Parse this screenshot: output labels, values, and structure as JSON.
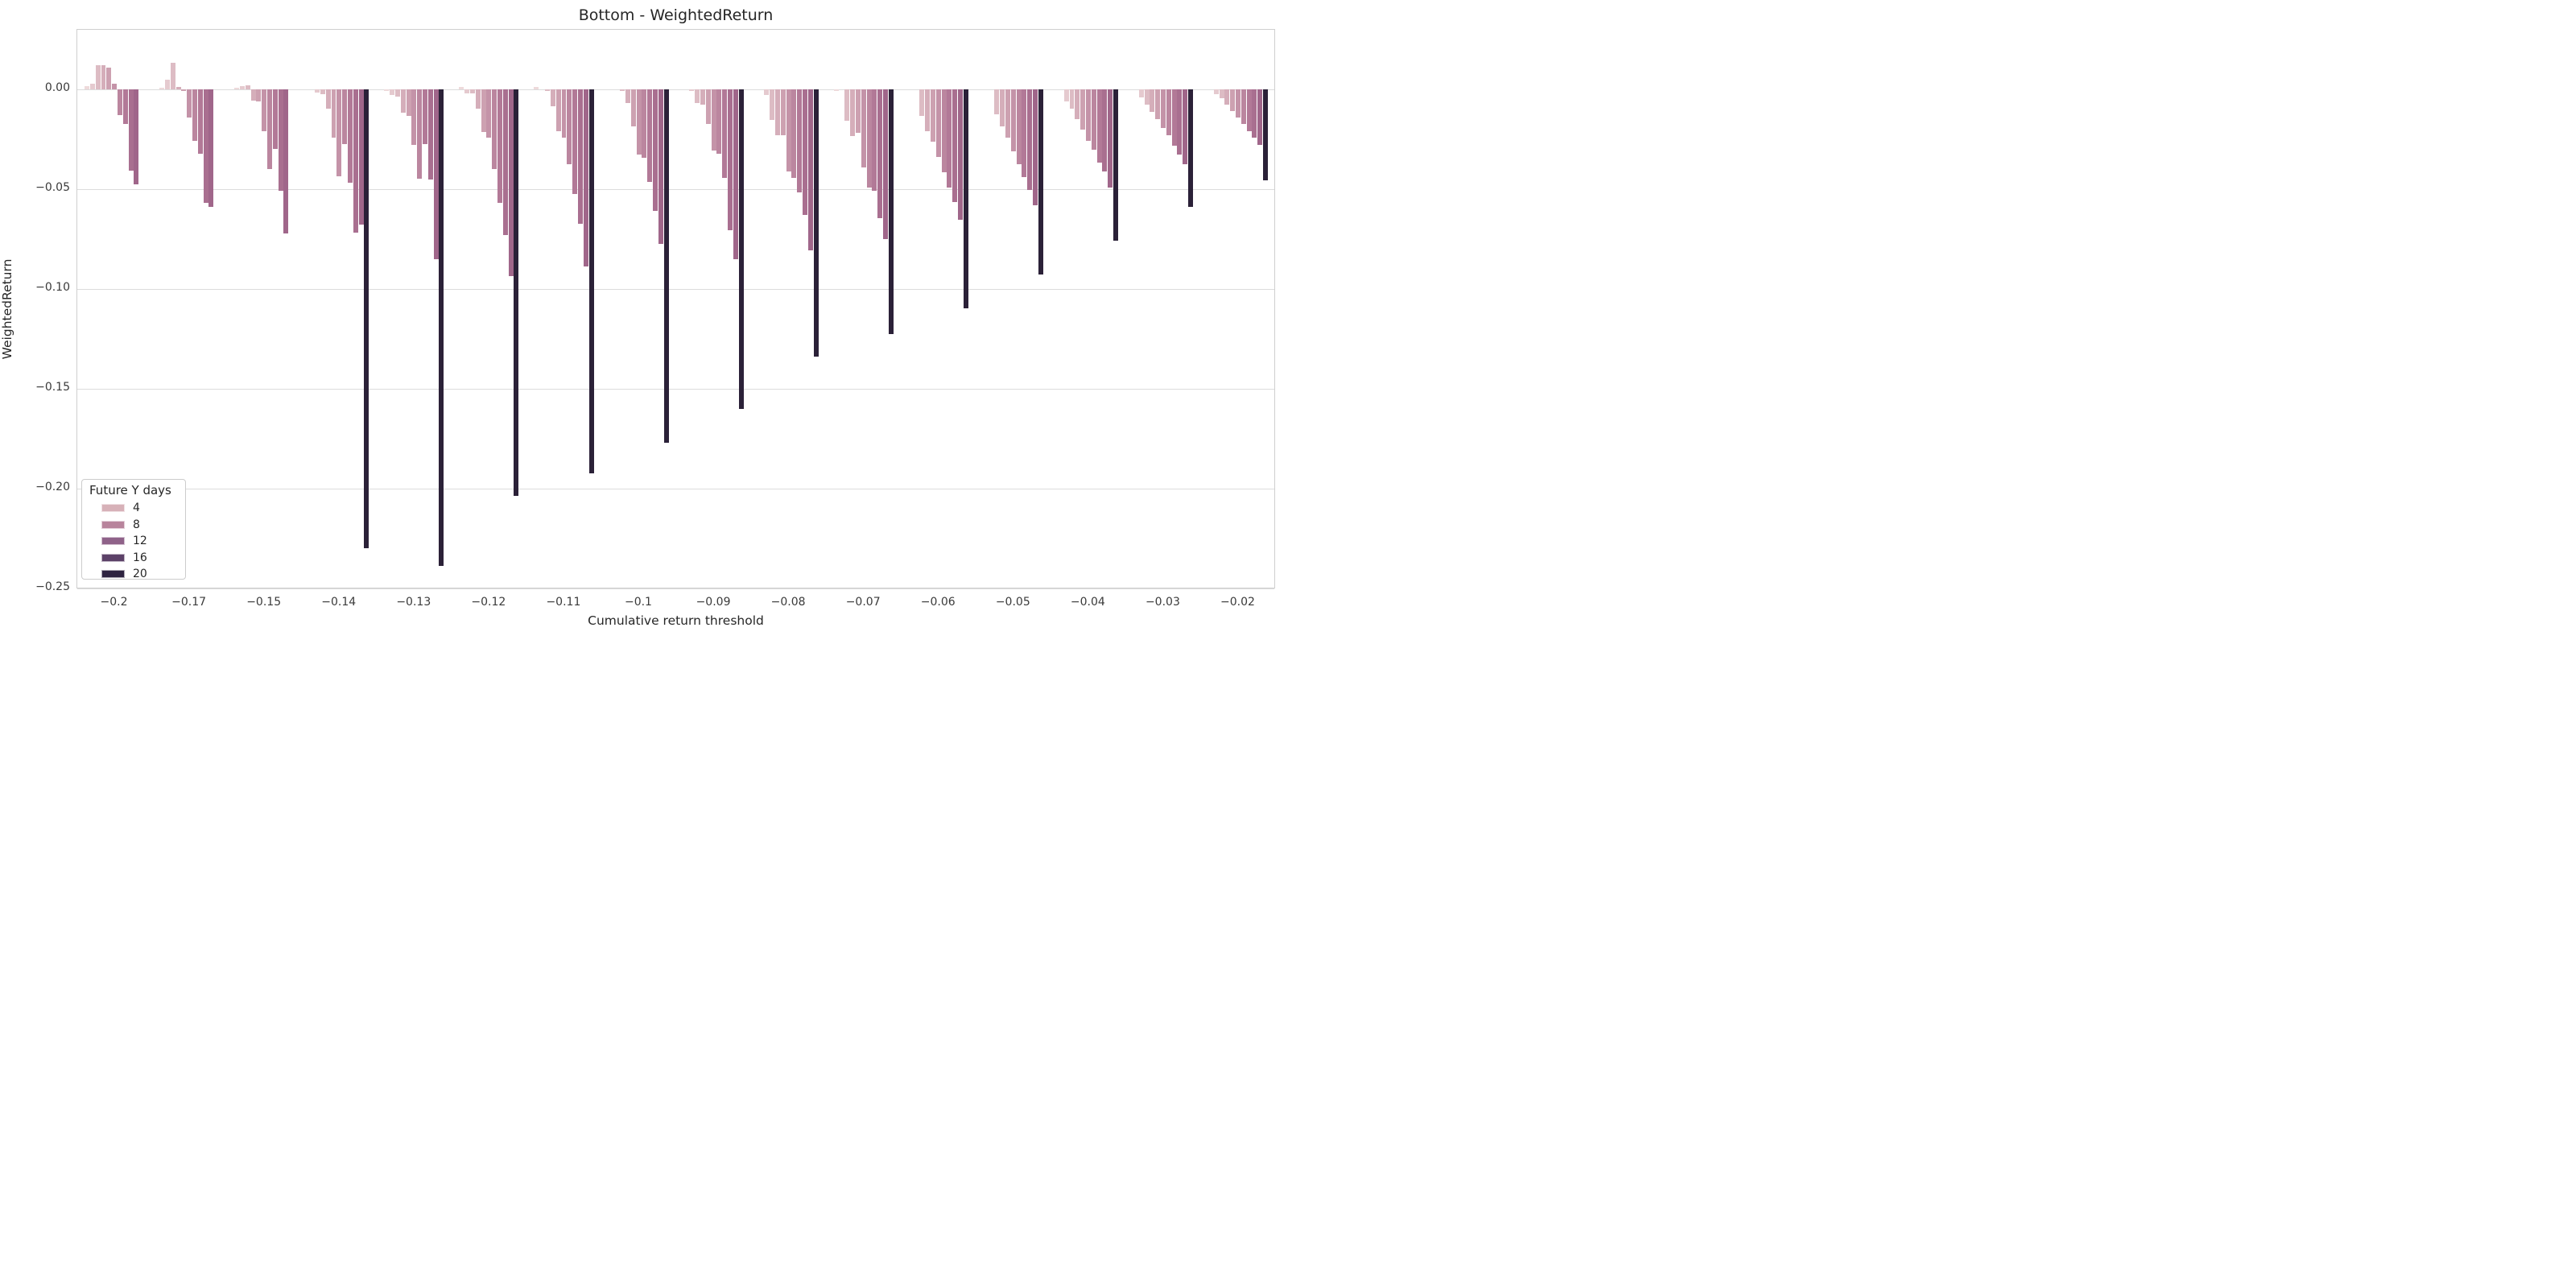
{
  "title": "Bottom - WeightedReturn",
  "legend": {
    "title": "Future Y days",
    "entries": [
      "4",
      "8",
      "12",
      "16",
      "20"
    ],
    "colors": [
      "#d7b1b8",
      "#b8849c",
      "#8f6289",
      "#5c4168",
      "#2e2340"
    ]
  },
  "chart_data": {
    "type": "bar",
    "title": "Bottom - WeightedReturn",
    "xlabel": "Cumulative return threshold",
    "ylabel": "WeightedReturn",
    "ylim": [
      -0.25,
      0.025
    ],
    "grid": true,
    "legend_position": "lower left",
    "hue_title": "Future Y days",
    "hue_legend_entries": [
      4,
      8,
      12,
      16,
      20
    ],
    "palette": [
      "#eedadb",
      "#e5cacf",
      "#ddbcc4",
      "#d5aeba",
      "#cda1b1",
      "#c493a8",
      "#bb869f",
      "#b27997",
      "#a96f90",
      "#a0668a",
      "#2b2138"
    ],
    "ytick_values": [
      0,
      -0.05,
      -0.1,
      -0.15,
      -0.2,
      -0.25
    ],
    "ytick_labels": [
      "0.00",
      "−0.05",
      "−0.10",
      "−0.15",
      "−0.20",
      "−0.25"
    ],
    "categories": [
      "-0.2",
      "-0.17",
      "-0.15",
      "-0.14",
      "-0.13",
      "-0.12",
      "-0.11",
      "-0.1",
      "-0.09",
      "-0.08",
      "-0.07",
      "-0.06",
      "-0.05",
      "-0.04",
      "-0.03",
      "-0.02"
    ],
    "xtick_labels": [
      "−0.2",
      "−0.17",
      "−0.15",
      "−0.14",
      "−0.13",
      "−0.12",
      "−0.11",
      "−0.1",
      "−0.09",
      "−0.08",
      "−0.07",
      "−0.06",
      "−0.05",
      "−0.04",
      "−0.03",
      "−0.02"
    ],
    "groups": [
      {
        "category": "-0.2",
        "bars": [
          {
            "ci": 0,
            "v": 0.0016
          },
          {
            "ci": 1,
            "v": 0.0028
          },
          {
            "ci": 2,
            "v": 0.0121
          },
          {
            "ci": 3,
            "v": 0.0119
          },
          {
            "ci": 4,
            "v": 0.0107
          },
          {
            "ci": 5,
            "v": 0.0028
          },
          {
            "ci": 6,
            "v": -0.0129
          },
          {
            "ci": 7,
            "v": -0.0175
          },
          {
            "ci": 8,
            "v": -0.0407
          },
          {
            "ci": 9,
            "v": -0.0476
          }
        ]
      },
      {
        "category": "-0.17",
        "bars": [
          {
            "ci": 0,
            "v": 0.0008
          },
          {
            "ci": 1,
            "v": 0.0048
          },
          {
            "ci": 2,
            "v": 0.0135
          },
          {
            "ci": 3,
            "v": 0.0013
          },
          {
            "ci": 4,
            "v": -0.0008
          },
          {
            "ci": 5,
            "v": -0.0141
          },
          {
            "ci": 6,
            "v": -0.0258
          },
          {
            "ci": 7,
            "v": -0.0323
          },
          {
            "ci": 8,
            "v": -0.0569
          },
          {
            "ci": 9,
            "v": -0.0587
          }
        ]
      },
      {
        "category": "-0.15",
        "bars": [
          {
            "ci": 0,
            "v": 0.001
          },
          {
            "ci": 1,
            "v": 0.0017
          },
          {
            "ci": 2,
            "v": 0.0022
          },
          {
            "ci": 3,
            "v": -0.0055
          },
          {
            "ci": 4,
            "v": -0.006
          },
          {
            "ci": 5,
            "v": -0.021
          },
          {
            "ci": 6,
            "v": -0.04
          },
          {
            "ci": 7,
            "v": -0.03
          },
          {
            "ci": 8,
            "v": -0.051
          },
          {
            "ci": 9,
            "v": -0.072
          }
        ]
      },
      {
        "category": "-0.14",
        "bars": [
          {
            "ci": 1,
            "v": -0.0017
          },
          {
            "ci": 2,
            "v": -0.0024
          },
          {
            "ci": 3,
            "v": -0.0095
          },
          {
            "ci": 4,
            "v": -0.0241
          },
          {
            "ci": 5,
            "v": -0.0434
          },
          {
            "ci": 6,
            "v": -0.0274
          },
          {
            "ci": 7,
            "v": -0.0466
          },
          {
            "ci": 8,
            "v": -0.0716
          },
          {
            "ci": 9,
            "v": -0.0676
          },
          {
            "ci": 10,
            "v": -0.2297
          }
        ]
      },
      {
        "category": "-0.13",
        "bars": [
          {
            "ci": 0,
            "v": -0.001
          },
          {
            "ci": 1,
            "v": -0.003
          },
          {
            "ci": 2,
            "v": -0.0036
          },
          {
            "ci": 3,
            "v": -0.0118
          },
          {
            "ci": 4,
            "v": -0.0135
          },
          {
            "ci": 5,
            "v": -0.028
          },
          {
            "ci": 6,
            "v": -0.0448
          },
          {
            "ci": 7,
            "v": -0.0274
          },
          {
            "ci": 8,
            "v": -0.0453
          },
          {
            "ci": 9,
            "v": -0.0852
          },
          {
            "ci": 10,
            "v": -0.2389
          }
        ]
      },
      {
        "category": "-0.12",
        "bars": [
          {
            "ci": 0,
            "v": 0.0012
          },
          {
            "ci": 1,
            "v": -0.002
          },
          {
            "ci": 2,
            "v": -0.002
          },
          {
            "ci": 3,
            "v": -0.0097
          },
          {
            "ci": 4,
            "v": -0.0215
          },
          {
            "ci": 5,
            "v": -0.0241
          },
          {
            "ci": 6,
            "v": -0.0401
          },
          {
            "ci": 7,
            "v": -0.0569
          },
          {
            "ci": 8,
            "v": -0.0731
          },
          {
            "ci": 9,
            "v": -0.0936
          },
          {
            "ci": 10,
            "v": -0.2038
          }
        ]
      },
      {
        "category": "-0.11",
        "bars": [
          {
            "ci": 0,
            "v": 0.0013
          },
          {
            "ci": 2,
            "v": -0.001
          },
          {
            "ci": 3,
            "v": -0.0084
          },
          {
            "ci": 4,
            "v": -0.021
          },
          {
            "ci": 5,
            "v": -0.024
          },
          {
            "ci": 6,
            "v": -0.0374
          },
          {
            "ci": 7,
            "v": -0.0523
          },
          {
            "ci": 8,
            "v": -0.0673
          },
          {
            "ci": 9,
            "v": -0.0887
          },
          {
            "ci": 10,
            "v": -0.1923
          }
        ]
      },
      {
        "category": "-0.1",
        "bars": [
          {
            "ci": 2,
            "v": -0.001
          },
          {
            "ci": 3,
            "v": -0.0068
          },
          {
            "ci": 4,
            "v": -0.0185
          },
          {
            "ci": 5,
            "v": -0.0326
          },
          {
            "ci": 6,
            "v": -0.0342
          },
          {
            "ci": 7,
            "v": -0.0463
          },
          {
            "ci": 8,
            "v": -0.0608
          },
          {
            "ci": 9,
            "v": -0.0773
          },
          {
            "ci": 10,
            "v": -0.1769
          }
        ]
      },
      {
        "category": "-0.09",
        "bars": [
          {
            "ci": 1,
            "v": -0.001
          },
          {
            "ci": 2,
            "v": -0.007
          },
          {
            "ci": 3,
            "v": -0.0077
          },
          {
            "ci": 4,
            "v": -0.0173
          },
          {
            "ci": 5,
            "v": -0.0306
          },
          {
            "ci": 6,
            "v": -0.0321
          },
          {
            "ci": 7,
            "v": -0.0442
          },
          {
            "ci": 8,
            "v": -0.0706
          },
          {
            "ci": 9,
            "v": -0.0849
          },
          {
            "ci": 10,
            "v": -0.1601
          }
        ]
      },
      {
        "category": "-0.08",
        "bars": [
          {
            "ci": 1,
            "v": -0.003
          },
          {
            "ci": 2,
            "v": -0.0155
          },
          {
            "ci": 3,
            "v": -0.0229
          },
          {
            "ci": 4,
            "v": -0.0229
          },
          {
            "ci": 5,
            "v": -0.041
          },
          {
            "ci": 6,
            "v": -0.0442
          },
          {
            "ci": 7,
            "v": -0.0516
          },
          {
            "ci": 8,
            "v": -0.0629
          },
          {
            "ci": 9,
            "v": -0.0806
          },
          {
            "ci": 10,
            "v": -0.1339
          }
        ]
      },
      {
        "category": "-0.07",
        "bars": [
          {
            "ci": 0,
            "v": -0.0008
          },
          {
            "ci": 2,
            "v": -0.0157
          },
          {
            "ci": 3,
            "v": -0.0235
          },
          {
            "ci": 4,
            "v": -0.0218
          },
          {
            "ci": 5,
            "v": -0.0393
          },
          {
            "ci": 6,
            "v": -0.0491
          },
          {
            "ci": 7,
            "v": -0.0508
          },
          {
            "ci": 8,
            "v": -0.0646
          },
          {
            "ci": 9,
            "v": -0.0749
          },
          {
            "ci": 10,
            "v": -0.1227
          }
        ]
      },
      {
        "category": "-0.06",
        "bars": [
          {
            "ci": 2,
            "v": -0.0132
          },
          {
            "ci": 3,
            "v": -0.0208
          },
          {
            "ci": 4,
            "v": -0.0262
          },
          {
            "ci": 5,
            "v": -0.0339
          },
          {
            "ci": 6,
            "v": -0.0414
          },
          {
            "ci": 7,
            "v": -0.0492
          },
          {
            "ci": 8,
            "v": -0.0566
          },
          {
            "ci": 9,
            "v": -0.0654
          },
          {
            "ci": 10,
            "v": -0.1096
          }
        ]
      },
      {
        "category": "-0.05",
        "bars": [
          {
            "ci": 2,
            "v": -0.0123
          },
          {
            "ci": 3,
            "v": -0.0186
          },
          {
            "ci": 4,
            "v": -0.0241
          },
          {
            "ci": 5,
            "v": -0.0312
          },
          {
            "ci": 6,
            "v": -0.0373
          },
          {
            "ci": 7,
            "v": -0.0441
          },
          {
            "ci": 8,
            "v": -0.0505
          },
          {
            "ci": 9,
            "v": -0.0582
          },
          {
            "ci": 10,
            "v": -0.0927
          }
        ]
      },
      {
        "category": "-0.04",
        "bars": [
          {
            "ci": 1,
            "v": -0.0059
          },
          {
            "ci": 2,
            "v": -0.0096
          },
          {
            "ci": 3,
            "v": -0.015
          },
          {
            "ci": 4,
            "v": -0.02
          },
          {
            "ci": 5,
            "v": -0.0258
          },
          {
            "ci": 6,
            "v": -0.0303
          },
          {
            "ci": 7,
            "v": -0.0366
          },
          {
            "ci": 8,
            "v": -0.0411
          },
          {
            "ci": 9,
            "v": -0.0492
          },
          {
            "ci": 10,
            "v": -0.0758
          }
        ]
      },
      {
        "category": "-0.03",
        "bars": [
          {
            "ci": 1,
            "v": -0.0042
          },
          {
            "ci": 2,
            "v": -0.0076
          },
          {
            "ci": 3,
            "v": -0.0114
          },
          {
            "ci": 4,
            "v": -0.015
          },
          {
            "ci": 5,
            "v": -0.0195
          },
          {
            "ci": 6,
            "v": -0.0231
          },
          {
            "ci": 7,
            "v": -0.0282
          },
          {
            "ci": 8,
            "v": -0.0326
          },
          {
            "ci": 9,
            "v": -0.0376
          },
          {
            "ci": 10,
            "v": -0.0589
          }
        ]
      },
      {
        "category": "-0.02",
        "bars": [
          {
            "ci": 1,
            "v": -0.0024
          },
          {
            "ci": 2,
            "v": -0.0046
          },
          {
            "ci": 3,
            "v": -0.0076
          },
          {
            "ci": 4,
            "v": -0.0107
          },
          {
            "ci": 5,
            "v": -0.0143
          },
          {
            "ci": 6,
            "v": -0.0173
          },
          {
            "ci": 7,
            "v": -0.0208
          },
          {
            "ci": 8,
            "v": -0.0241
          },
          {
            "ci": 9,
            "v": -0.0278
          },
          {
            "ci": 10,
            "v": -0.0457
          }
        ]
      }
    ]
  }
}
